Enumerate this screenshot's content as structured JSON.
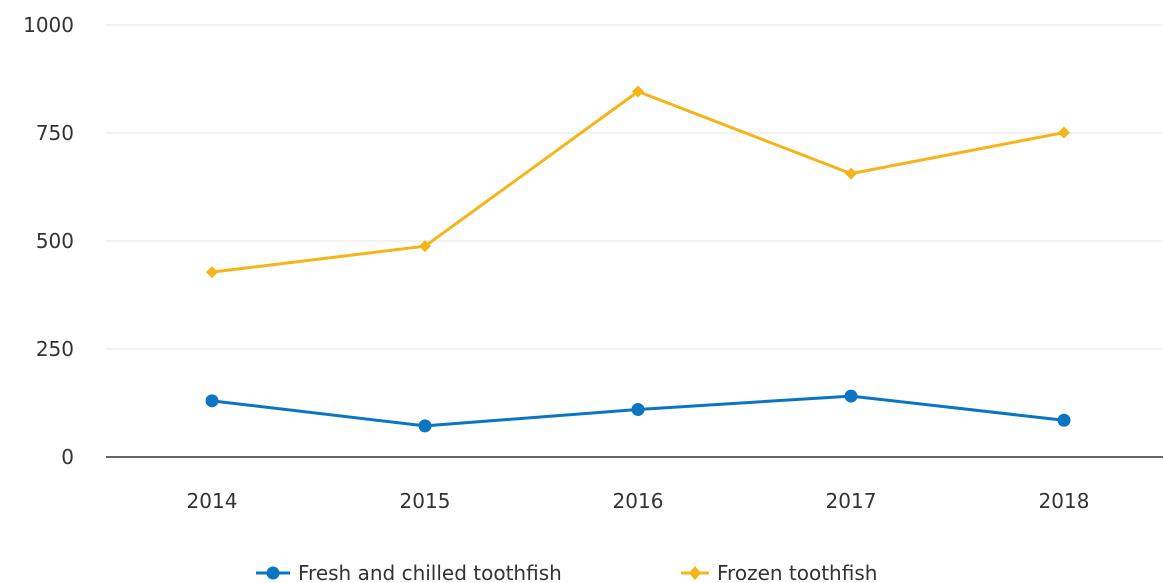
{
  "chart_data": {
    "type": "line",
    "categories": [
      "2014",
      "2015",
      "2016",
      "2017",
      "2018"
    ],
    "series": [
      {
        "name": "Fresh and chilled toothfish",
        "values": [
          130,
          72,
          110,
          141,
          85
        ],
        "color": "#0a75c2",
        "marker": "circle"
      },
      {
        "name": "Frozen toothfish",
        "values": [
          428,
          488,
          846,
          656,
          751
        ],
        "color": "#f5b417",
        "marker": "diamond"
      }
    ],
    "y_ticks": [
      "0",
      "250",
      "500",
      "750",
      "1000"
    ],
    "ylim": [
      0,
      1000
    ],
    "grid": true,
    "legend_position": "bottom"
  }
}
